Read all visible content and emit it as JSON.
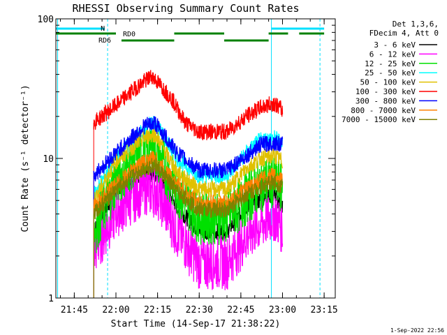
{
  "chart_data": {
    "type": "line",
    "title": "RHESSI Observing Summary Count Rates",
    "xlabel": "Start Time (14-Sep-17 21:38:22)",
    "ylabel": "Count Rate (s⁻¹ detector⁻¹)",
    "yscale": "log",
    "ylim": [
      1,
      100
    ],
    "xlim": [
      "21:38:22",
      "23:19:00"
    ],
    "x_ticks": [
      "21:45",
      "22:00",
      "22:15",
      "22:30",
      "22:45",
      "23:00",
      "23:15"
    ],
    "y_ticks": [
      {
        "value": 1,
        "label": "1"
      },
      {
        "value": 10,
        "label": "10"
      },
      {
        "value": 100,
        "label": "100"
      }
    ],
    "legend_position": "top-right",
    "legend_header": [
      "Det 1,3,6,",
      "FDecim 4, Att 0"
    ],
    "footer_date": "1-Sep-2022 22:56",
    "annotations": {
      "night_label": "N",
      "rd0_label": "RD0",
      "rd6_label": "RD6",
      "night_bars": [
        [
          "21:38:22",
          "21:56:00"
        ],
        [
          "22:56:00",
          "23:15:00"
        ]
      ],
      "rd0_bars": [
        [
          "21:38:22",
          "22:00:00"
        ],
        [
          "22:21:00",
          "22:39:00"
        ],
        [
          "22:55:00",
          "23:02:00"
        ],
        [
          "23:06:00",
          "23:15:00"
        ]
      ],
      "rd6_bars": [
        [
          "22:02:00",
          "22:21:00"
        ],
        [
          "22:39:00",
          "22:55:00"
        ]
      ],
      "cyan_vlines": [
        "21:39:00",
        "22:56:00"
      ],
      "dashed_vlines": [
        "21:57:00",
        "23:13:30"
      ]
    },
    "series": [
      {
        "name": "3 - 6 keV",
        "color": "#000000",
        "x": [
          "21:52:00",
          "22:00:00",
          "22:10:00",
          "22:15:00",
          "22:22:00",
          "22:30:00",
          "22:40:00",
          "22:47:00",
          "22:52:00",
          "22:57:00",
          "23:00:00"
        ],
        "y": [
          3.0,
          6.0,
          7.8,
          7.6,
          4.5,
          3.0,
          3.0,
          4.5,
          5.0,
          5.5,
          4.5
        ]
      },
      {
        "name": "6 - 12 keV",
        "color": "#ff00ff",
        "x": [
          "21:52:00",
          "22:00:00",
          "22:10:00",
          "22:15:00",
          "22:22:00",
          "22:30:00",
          "22:40:00",
          "22:47:00",
          "22:52:00",
          "22:57:00",
          "23:00:00"
        ],
        "y": [
          2.2,
          4.2,
          6.2,
          5.8,
          3.0,
          1.8,
          1.8,
          2.8,
          3.4,
          4.0,
          3.2
        ]
      },
      {
        "name": "12 - 25 keV",
        "color": "#00e000",
        "x": [
          "21:52:00",
          "22:00:00",
          "22:10:00",
          "22:13:00",
          "22:22:00",
          "22:30:00",
          "22:40:00",
          "22:47:00",
          "22:52:00",
          "22:57:00",
          "23:00:00"
        ],
        "y": [
          3.0,
          7.0,
          11.5,
          12.5,
          6.0,
          3.8,
          3.8,
          5.2,
          6.5,
          7.0,
          6.0
        ]
      },
      {
        "name": "25 - 50 keV",
        "color": "#00ffff",
        "x": [
          "21:52:00",
          "22:00:00",
          "22:10:00",
          "22:14:00",
          "22:22:00",
          "22:30:00",
          "22:40:00",
          "22:47:00",
          "22:52:00",
          "22:57:00",
          "23:00:00"
        ],
        "y": [
          5.5,
          10.0,
          16.0,
          18.5,
          10.0,
          7.5,
          7.5,
          11.0,
          13.5,
          14.0,
          13.0
        ]
      },
      {
        "name": "50 - 100 keV",
        "color": "#e0c000",
        "x": [
          "21:52:00",
          "22:00:00",
          "22:10:00",
          "22:14:00",
          "22:22:00",
          "22:30:00",
          "22:40:00",
          "22:47:00",
          "22:52:00",
          "22:57:00",
          "23:00:00"
        ],
        "y": [
          5.0,
          9.5,
          14.0,
          15.0,
          8.0,
          6.0,
          6.0,
          8.5,
          10.0,
          10.5,
          9.5
        ]
      },
      {
        "name": "100 - 300 keV",
        "color": "#ff0000",
        "x": [
          "21:52:00",
          "22:00:00",
          "22:08:00",
          "22:13:00",
          "22:20:00",
          "22:25:00",
          "22:30:00",
          "22:40:00",
          "22:47:00",
          "22:52:00",
          "22:57:00",
          "23:00:00"
        ],
        "y": [
          18.0,
          24.0,
          33.0,
          39.0,
          27.0,
          18.0,
          15.5,
          15.5,
          20.0,
          23.0,
          25.0,
          22.0
        ]
      },
      {
        "name": "300 - 800 keV",
        "color": "#0000ff",
        "x": [
          "21:52:00",
          "22:00:00",
          "22:10:00",
          "22:14:00",
          "22:22:00",
          "22:30:00",
          "22:40:00",
          "22:47:00",
          "22:52:00",
          "22:57:00",
          "23:00:00"
        ],
        "y": [
          7.5,
          11.0,
          17.0,
          18.0,
          11.0,
          8.2,
          8.2,
          10.5,
          12.5,
          13.0,
          12.5
        ]
      },
      {
        "name": "800 - 7000 keV",
        "color": "#ff8000",
        "x": [
          "21:52:00",
          "22:00:00",
          "22:10:00",
          "22:14:00",
          "22:22:00",
          "22:30:00",
          "22:40:00",
          "22:47:00",
          "22:52:00",
          "22:57:00",
          "23:00:00"
        ],
        "y": [
          4.5,
          6.5,
          9.5,
          10.0,
          6.5,
          4.8,
          4.8,
          6.0,
          7.0,
          7.5,
          7.0
        ]
      },
      {
        "name": "7000 - 15000 keV",
        "color": "#808000",
        "x": [
          "21:52:00",
          "22:00:00",
          "22:10:00",
          "22:14:00",
          "22:22:00",
          "22:30:00",
          "22:40:00",
          "22:47:00",
          "22:52:00",
          "22:57:00",
          "23:00:00"
        ],
        "y": [
          4.0,
          6.0,
          8.5,
          9.0,
          5.8,
          4.3,
          4.3,
          5.5,
          6.3,
          6.8,
          6.3
        ]
      }
    ]
  }
}
